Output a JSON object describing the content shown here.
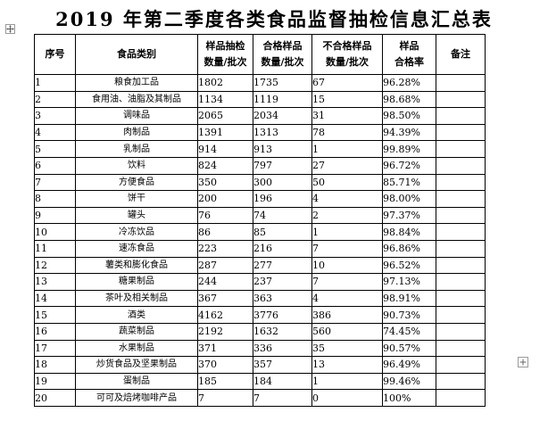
{
  "title": "2019 年第二季度各类食品监督抽检信息汇总表",
  "headers": {
    "no": "序号",
    "category": "食品类别",
    "sampled_line1": "样品抽检",
    "sampled_line2": "数量/批次",
    "qualified_line1": "合格样品",
    "qualified_line2": "数量/批次",
    "unqualified_line1": "不合格样品",
    "unqualified_line2": "数量/批次",
    "rate_line1": "样品",
    "rate_line2": "合格率",
    "notes": "备注"
  },
  "rows": [
    {
      "no": "1",
      "category": "粮食加工品",
      "sampled": "1802",
      "qualified": "1735",
      "unqualified": "67",
      "rate": "96.28%",
      "note": ""
    },
    {
      "no": "2",
      "category": "食用油、油脂及其制品",
      "sampled": "1134",
      "qualified": "1119",
      "unqualified": "15",
      "rate": "98.68%",
      "note": ""
    },
    {
      "no": "3",
      "category": "调味品",
      "sampled": "2065",
      "qualified": "2034",
      "unqualified": "31",
      "rate": "98.50%",
      "note": ""
    },
    {
      "no": "4",
      "category": "肉制品",
      "sampled": "1391",
      "qualified": "1313",
      "unqualified": "78",
      "rate": "94.39%",
      "note": ""
    },
    {
      "no": "5",
      "category": "乳制品",
      "sampled": "914",
      "qualified": "913",
      "unqualified": "1",
      "rate": "99.89%",
      "note": ""
    },
    {
      "no": "6",
      "category": "饮料",
      "sampled": "824",
      "qualified": "797",
      "unqualified": "27",
      "rate": "96.72%",
      "note": ""
    },
    {
      "no": "7",
      "category": "方便食品",
      "sampled": "350",
      "qualified": "300",
      "unqualified": "50",
      "rate": "85.71%",
      "note": ""
    },
    {
      "no": "8",
      "category": "饼干",
      "sampled": "200",
      "qualified": "196",
      "unqualified": "4",
      "rate": "98.00%",
      "note": ""
    },
    {
      "no": "9",
      "category": "罐头",
      "sampled": "76",
      "qualified": "74",
      "unqualified": "2",
      "rate": "97.37%",
      "note": ""
    },
    {
      "no": "10",
      "category": "冷冻饮品",
      "sampled": "86",
      "qualified": "85",
      "unqualified": "1",
      "rate": "98.84%",
      "note": ""
    },
    {
      "no": "11",
      "category": "速冻食品",
      "sampled": "223",
      "qualified": "216",
      "unqualified": "7",
      "rate": "96.86%",
      "note": ""
    },
    {
      "no": "12",
      "category": "薯类和膨化食品",
      "sampled": "287",
      "qualified": "277",
      "unqualified": "10",
      "rate": "96.52%",
      "note": ""
    },
    {
      "no": "13",
      "category": "糖果制品",
      "sampled": "244",
      "qualified": "237",
      "unqualified": "7",
      "rate": "97.13%",
      "note": ""
    },
    {
      "no": "14",
      "category": "茶叶及相关制品",
      "sampled": "367",
      "qualified": "363",
      "unqualified": "4",
      "rate": "98.91%",
      "note": ""
    },
    {
      "no": "15",
      "category": "酒类",
      "sampled": "4162",
      "qualified": "3776",
      "unqualified": "386",
      "rate": "90.73%",
      "note": ""
    },
    {
      "no": "16",
      "category": "蔬菜制品",
      "sampled": "2192",
      "qualified": "1632",
      "unqualified": "560",
      "rate": "74.45%",
      "note": ""
    },
    {
      "no": "17",
      "category": "水果制品",
      "sampled": "371",
      "qualified": "336",
      "unqualified": "35",
      "rate": "90.57%",
      "note": ""
    },
    {
      "no": "18",
      "category": "炒货食品及坚果制品",
      "sampled": "370",
      "qualified": "357",
      "unqualified": "13",
      "rate": "96.49%",
      "note": ""
    },
    {
      "no": "19",
      "category": "蛋制品",
      "sampled": "185",
      "qualified": "184",
      "unqualified": "1",
      "rate": "99.46%",
      "note": ""
    },
    {
      "no": "20",
      "category": "可可及焙烤咖啡产品",
      "sampled": "7",
      "qualified": "7",
      "unqualified": "0",
      "rate": "100%",
      "note": ""
    }
  ],
  "icons": {
    "move_handle": "move-arrows-icon",
    "add_row": "plus-icon"
  }
}
